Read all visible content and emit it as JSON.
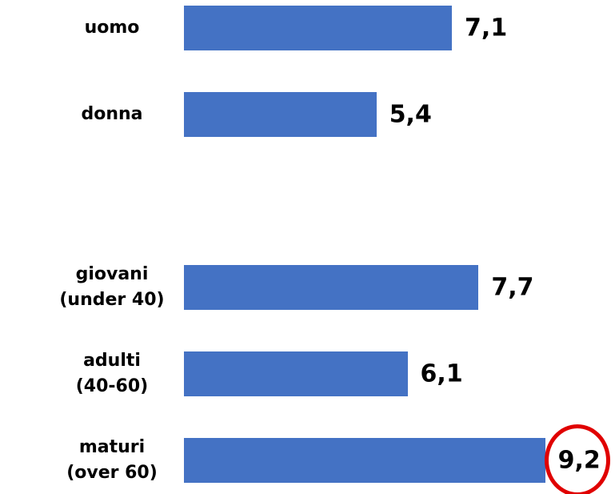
{
  "chart_data": {
    "type": "barh",
    "categories": [
      "uomo",
      "donna",
      null,
      "giovani\n(under 40)",
      "adulti\n(40-60)",
      "maturi\n(over 60)"
    ],
    "values": [
      7.1,
      5.4,
      null,
      7.7,
      6.1,
      9.2
    ],
    "value_labels": [
      "7,1",
      "5,4",
      null,
      "7,7",
      "6,1",
      "9,2"
    ],
    "color": "#4472c4",
    "xlim": [
      1,
      10.5
    ]
  }
}
